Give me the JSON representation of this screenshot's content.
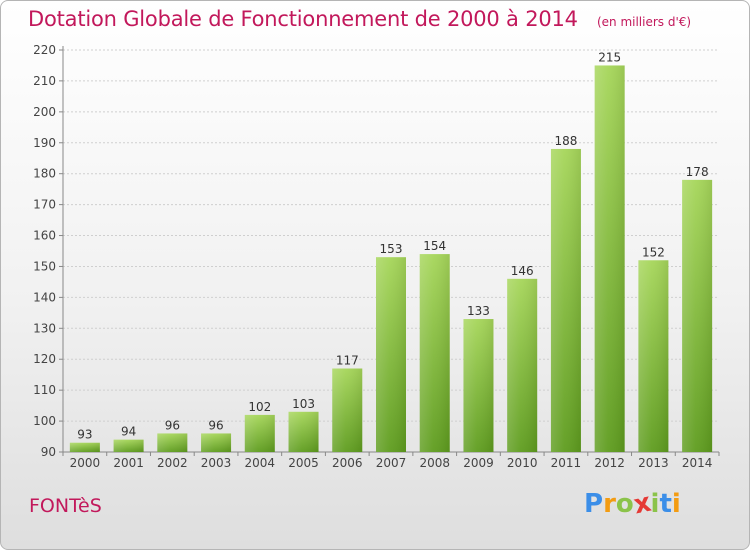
{
  "header": {
    "title": "Dotation Globale de Fonctionnement de 2000 à 2014",
    "subtitle": "(en milliers d'€)"
  },
  "footer": {
    "place": "FONTèS",
    "logo_letters": [
      "P",
      "r",
      "o",
      "x",
      "i",
      "t",
      "i"
    ],
    "logo_colors": [
      "#3b8ee8",
      "#f39c12",
      "#8bc34a",
      "#e53935",
      "#8bc34a",
      "#3b8ee8",
      "#f39c12"
    ]
  },
  "colors": {
    "title": "#c2185b",
    "bar_top": "#a6d65a",
    "bar_bottom": "#5e9c1e",
    "grid": "#cfcfcf"
  },
  "chart_data": {
    "type": "bar",
    "categories": [
      "2000",
      "2001",
      "2002",
      "2003",
      "2004",
      "2005",
      "2006",
      "2007",
      "2008",
      "2009",
      "2010",
      "2011",
      "2012",
      "2013",
      "2014"
    ],
    "values": [
      93,
      94,
      96,
      96,
      102,
      103,
      117,
      153,
      154,
      133,
      146,
      188,
      215,
      152,
      178
    ],
    "ylim": [
      90,
      220
    ],
    "yticks": [
      90,
      100,
      110,
      120,
      130,
      140,
      150,
      160,
      170,
      180,
      190,
      200,
      210,
      220
    ],
    "grid": true,
    "data_labels": true
  }
}
